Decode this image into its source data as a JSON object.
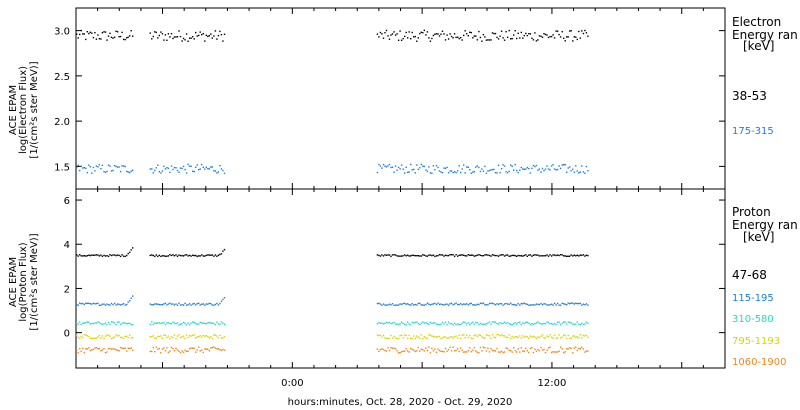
{
  "chart_data": [
    {
      "type": "scatter",
      "panel": "electron",
      "ylabel_lines": [
        "ACE EPAM",
        "log(Electron Flux)",
        "[1/(cm²s ster MeV)]"
      ],
      "ylim": [
        1.25,
        3.25
      ],
      "yticks": [
        "1.5",
        "2.0",
        "2.5",
        "3.0"
      ],
      "ytick_values": [
        1.5,
        2.0,
        2.5,
        3.0
      ],
      "legend_title_lines": [
        "Electron",
        "Energy ran",
        "[keV]"
      ],
      "series": [
        {
          "name": "38-53",
          "color": "#000000",
          "level": 2.95,
          "jitter": 0.06
        },
        {
          "name": "175-315",
          "color": "#1f7fd4",
          "level": 1.48,
          "jitter": 0.05
        }
      ]
    },
    {
      "type": "scatter",
      "panel": "proton",
      "ylabel_lines": [
        "ACE EPAM",
        "log(Proton Flux)",
        "[1/(cm²s ster MeV)]"
      ],
      "ylim": [
        -1.6,
        6.5
      ],
      "yticks": [
        "0",
        "2",
        "4",
        "6"
      ],
      "ytick_values": [
        0,
        2,
        4,
        6
      ],
      "legend_title_lines": [
        "Proton",
        "Energy ran",
        "[keV]"
      ],
      "series": [
        {
          "name": "47-68",
          "color": "#000000",
          "level": 3.52,
          "jitter": 0.04
        },
        {
          "name": "115-195",
          "color": "#1f7fd4",
          "level": 1.32,
          "jitter": 0.05
        },
        {
          "name": "310-580",
          "color": "#2ad6c8",
          "level": 0.45,
          "jitter": 0.07
        },
        {
          "name": "795-1193",
          "color": "#d6d600",
          "level": -0.15,
          "jitter": 0.09
        },
        {
          "name": "1060-1900",
          "color": "#e8891e",
          "level": -0.75,
          "jitter": 0.13
        }
      ]
    }
  ],
  "time_axis": {
    "xlabel": "hours:minutes, Oct. 28, 2020 - Oct. 29, 2020",
    "xlim_hours": [
      -10,
      20
    ],
    "ticks": [
      {
        "hours": 0,
        "label": "0:00"
      },
      {
        "hours": 12,
        "label": "12:00"
      }
    ],
    "data_segments_hours": [
      [
        -10,
        -7.4
      ],
      [
        -6.6,
        -3.1
      ],
      [
        3.9,
        13.7
      ]
    ]
  }
}
